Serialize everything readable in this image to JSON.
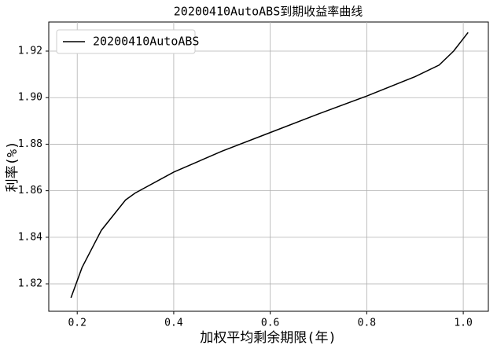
{
  "chart_data": {
    "type": "line",
    "title": "20200410AutoABS到期收益率曲线",
    "x_label": "加权平均剩余期限(年)",
    "y_label": "利率(%)",
    "x": [
      0.187,
      0.21,
      0.25,
      0.3,
      0.32,
      0.4,
      0.5,
      0.6,
      0.7,
      0.8,
      0.9,
      0.95,
      0.98,
      1.01
    ],
    "series": [
      {
        "name": "20200410AutoABS",
        "color": "#000000",
        "values": [
          1.814,
          1.827,
          1.843,
          1.856,
          1.859,
          1.868,
          1.877,
          1.885,
          1.893,
          1.9007,
          1.909,
          1.914,
          1.92,
          1.928
        ]
      }
    ],
    "xlim": [
      0.141,
      1.052
    ],
    "ylim": [
      1.8082,
      1.9325
    ],
    "xticks": [
      {
        "value": 0.2,
        "label": "0.2"
      },
      {
        "value": 0.4,
        "label": "0.4"
      },
      {
        "value": 0.6,
        "label": "0.6"
      },
      {
        "value": 0.8,
        "label": "0.8"
      },
      {
        "value": 1.0,
        "label": "1.0"
      }
    ],
    "yticks": [
      {
        "value": 1.82,
        "label": "1.82"
      },
      {
        "value": 1.84,
        "label": "1.84"
      },
      {
        "value": 1.86,
        "label": "1.86"
      },
      {
        "value": 1.88,
        "label": "1.88"
      },
      {
        "value": 1.9,
        "label": "1.90"
      },
      {
        "value": 1.92,
        "label": "1.92"
      }
    ],
    "grid": true,
    "legend": "upper-left"
  }
}
